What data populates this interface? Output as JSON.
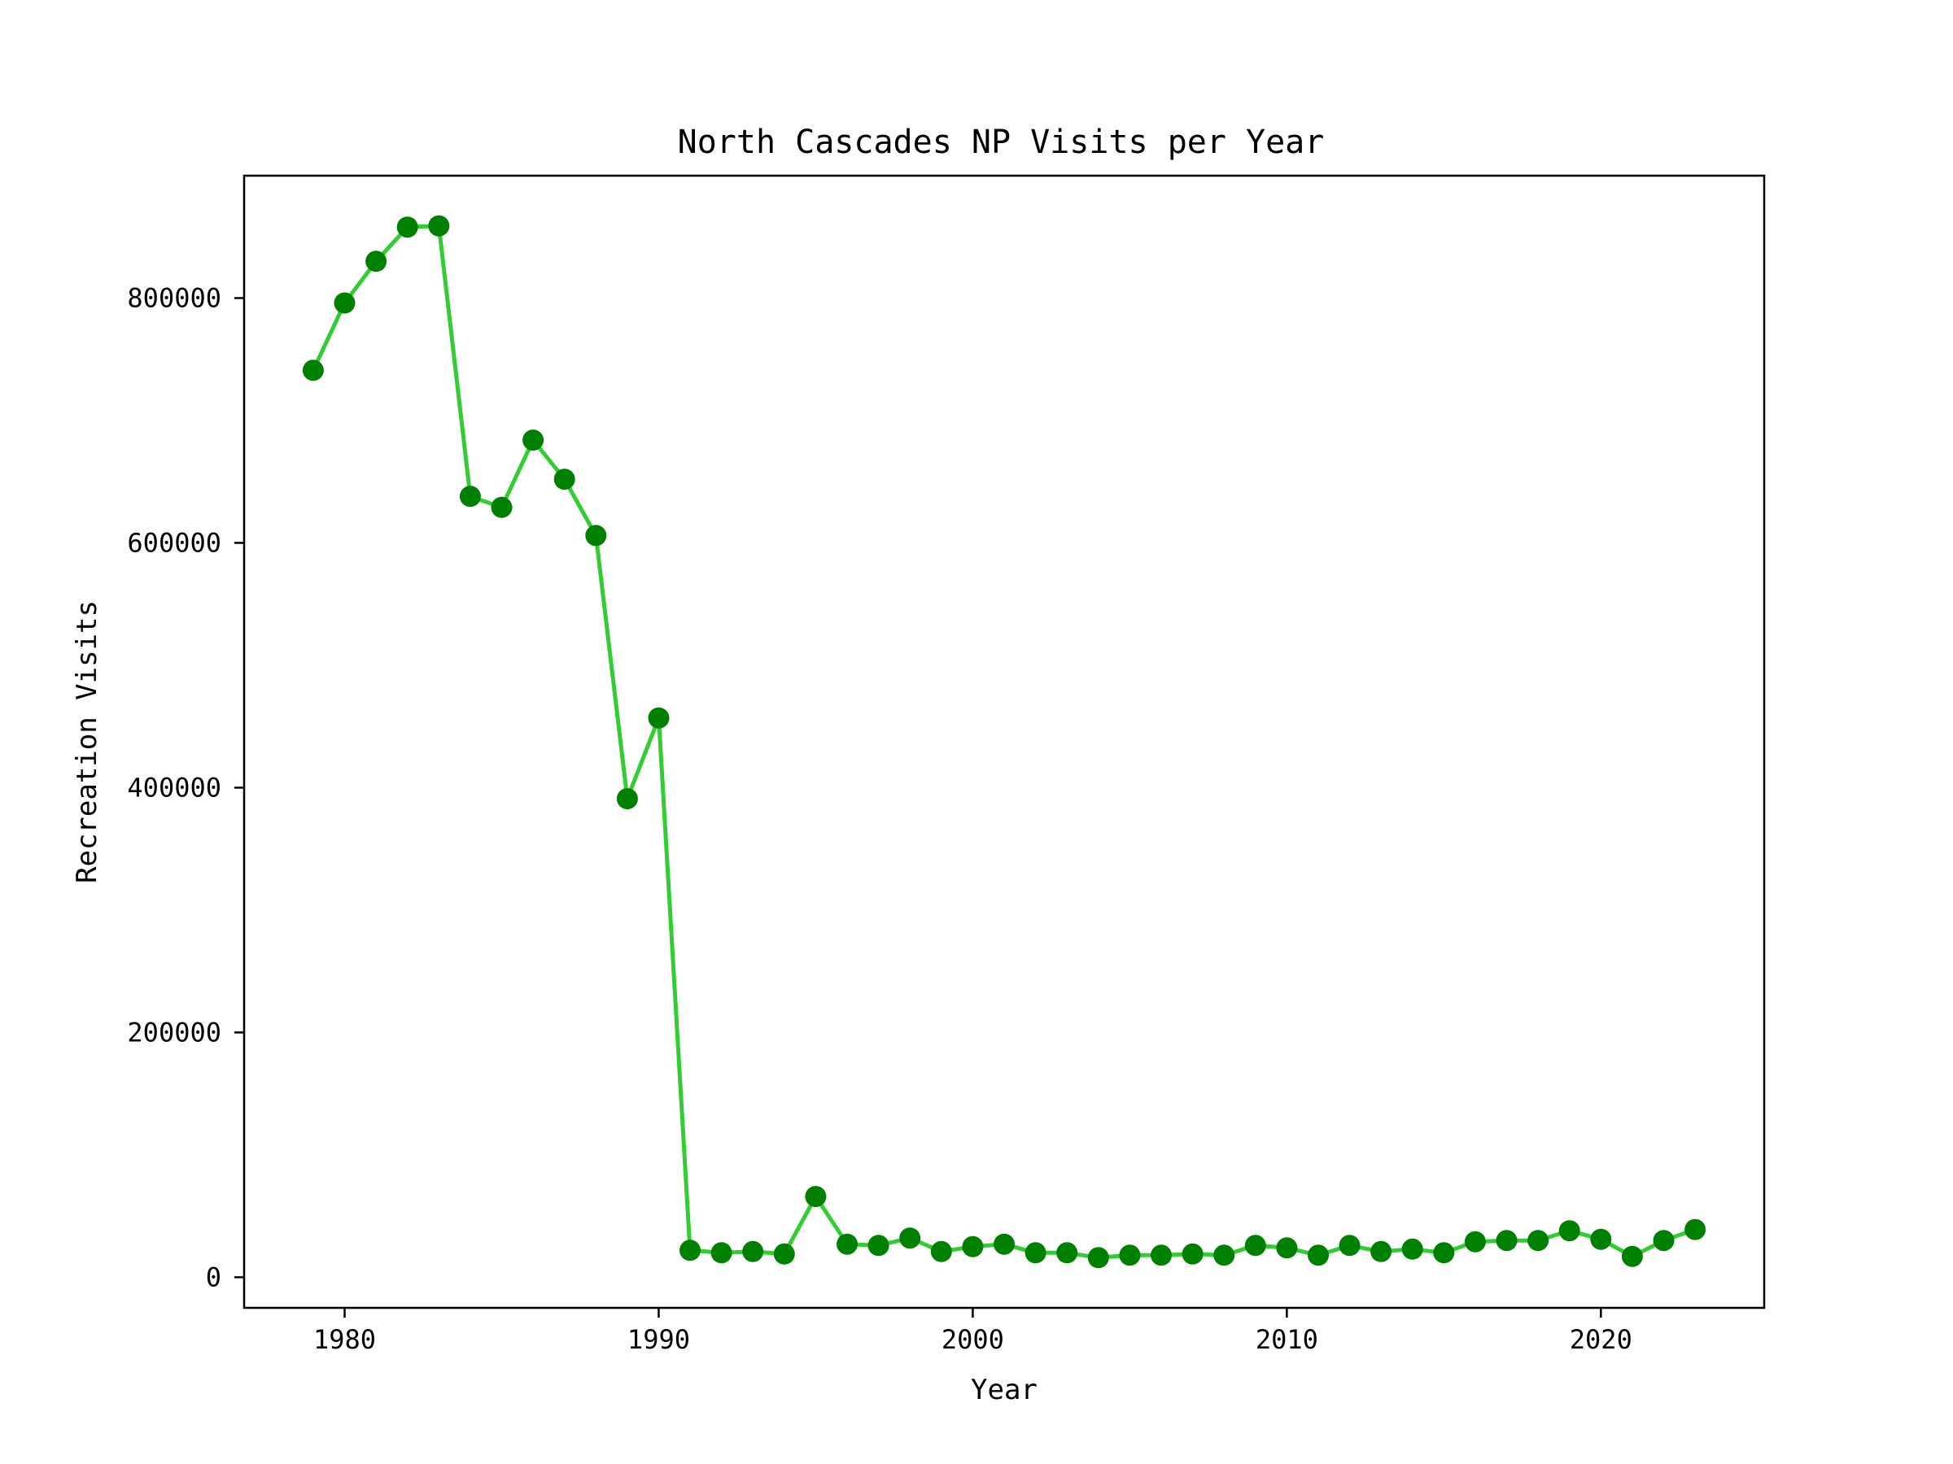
{
  "chart_data": {
    "type": "line",
    "title": "North Cascades NP Visits per Year",
    "xlabel": "Year",
    "ylabel": "Recreation Visits",
    "xlim": [
      1976.8,
      2025.2
    ],
    "ylim": [
      -25000,
      900000
    ],
    "xticks": [
      1980,
      1990,
      2000,
      2010,
      2020
    ],
    "yticks": [
      0,
      200000,
      400000,
      600000,
      800000
    ],
    "grid": false,
    "legend": "none",
    "line_color": "#32cd32",
    "marker_color": "#008000",
    "series": [
      {
        "x": [
          1979,
          1980,
          1981,
          1982,
          1983,
          1984,
          1985,
          1986,
          1987,
          1988,
          1989,
          1990,
          1991,
          1992,
          1993,
          1994,
          1995,
          1996,
          1997,
          1998,
          1999,
          2000,
          2001,
          2002,
          2003,
          2004,
          2005,
          2006,
          2007,
          2008,
          2009,
          2010,
          2011,
          2012,
          2013,
          2014,
          2015,
          2016,
          2017,
          2018,
          2019,
          2020,
          2021,
          2022,
          2023
        ],
        "values": [
          741000,
          796000,
          830000,
          858000,
          859000,
          638000,
          629000,
          684000,
          652000,
          606000,
          391000,
          457000,
          22000,
          20000,
          21000,
          19000,
          66000,
          27000,
          26000,
          32000,
          21000,
          25000,
          27000,
          20000,
          20000,
          16000,
          18000,
          18000,
          19000,
          18000,
          26000,
          24000,
          18000,
          26000,
          21000,
          23000,
          20000,
          29000,
          30000,
          30000,
          38000,
          31000,
          17000,
          30000,
          39000
        ]
      }
    ]
  }
}
